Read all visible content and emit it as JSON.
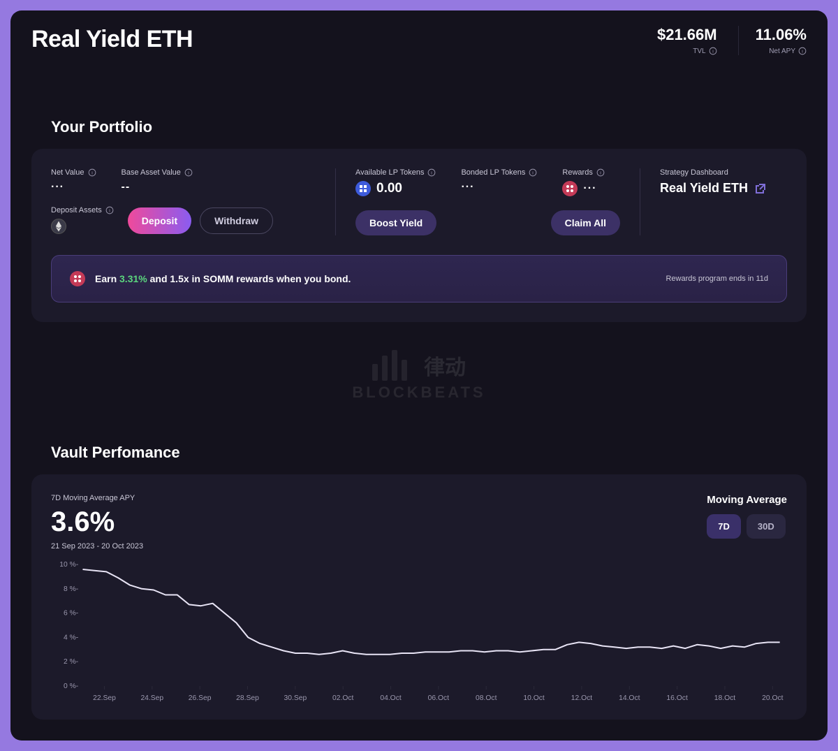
{
  "header": {
    "title": "Real Yield ETH",
    "stats": [
      {
        "value": "$21.66M",
        "label": "TVL"
      },
      {
        "value": "11.06%",
        "label": "Net APY"
      }
    ]
  },
  "portfolio": {
    "section_title": "Your Portfolio",
    "col1": {
      "net_value": {
        "label": "Net Value",
        "value": "···"
      },
      "base_asset": {
        "label": "Base Asset Value",
        "value": "--"
      },
      "deposit_assets_label": "Deposit Assets",
      "deposit_btn": "Deposit",
      "withdraw_btn": "Withdraw"
    },
    "col2": {
      "available_lp": {
        "label": "Available LP Tokens",
        "value": "0.00"
      },
      "bonded_lp": {
        "label": "Bonded LP Tokens",
        "value": "···"
      },
      "rewards": {
        "label": "Rewards",
        "value": "···"
      },
      "boost_btn": "Boost Yield",
      "claim_btn": "Claim All"
    },
    "strategy": {
      "label": "Strategy Dashboard",
      "name": "Real Yield ETH"
    },
    "banner": {
      "prefix": "Earn ",
      "highlight": "3.31%",
      "suffix": " and 1.5x in SOMM rewards when you bond.",
      "ends": "Rewards program ends in 11d"
    }
  },
  "watermark": {
    "top": "律动",
    "bottom": "BLOCKBEATS"
  },
  "performance": {
    "section_title": "Vault Perfomance",
    "metric_label": "7D Moving Average APY",
    "metric_value": "3.6%",
    "date_range": "21 Sep 2023 - 20 Oct 2023",
    "moving_avg_label": "Moving Average",
    "pills": [
      "7D",
      "30D"
    ],
    "active_pill": "7D",
    "chart": {
      "type": "line",
      "line_color": "#e8e4f5",
      "grid_color": "#2a2838",
      "background": "#1c1a2a",
      "line_width": 2,
      "ylim": [
        0,
        10
      ],
      "ytick_step": 2,
      "y_suffix": " %-",
      "x_labels": [
        "22.Sep",
        "24.Sep",
        "26.Sep",
        "28.Sep",
        "30.Sep",
        "02.Oct",
        "04.Oct",
        "06.Oct",
        "08.Oct",
        "10.Oct",
        "12.Oct",
        "14.Oct",
        "16.Oct",
        "18.Oct",
        "20.Oct"
      ],
      "values": [
        9.6,
        9.5,
        9.4,
        8.9,
        8.3,
        8.0,
        7.9,
        7.5,
        7.5,
        6.7,
        6.6,
        6.8,
        6.0,
        5.2,
        4.0,
        3.5,
        3.2,
        2.9,
        2.7,
        2.7,
        2.6,
        2.7,
        2.9,
        2.7,
        2.6,
        2.6,
        2.6,
        2.7,
        2.7,
        2.8,
        2.8,
        2.8,
        2.9,
        2.9,
        2.8,
        2.9,
        2.9,
        2.8,
        2.9,
        3.0,
        3.0,
        3.4,
        3.6,
        3.5,
        3.3,
        3.2,
        3.1,
        3.2,
        3.2,
        3.1,
        3.3,
        3.1,
        3.4,
        3.3,
        3.1,
        3.3,
        3.2,
        3.5,
        3.6,
        3.6
      ]
    }
  }
}
